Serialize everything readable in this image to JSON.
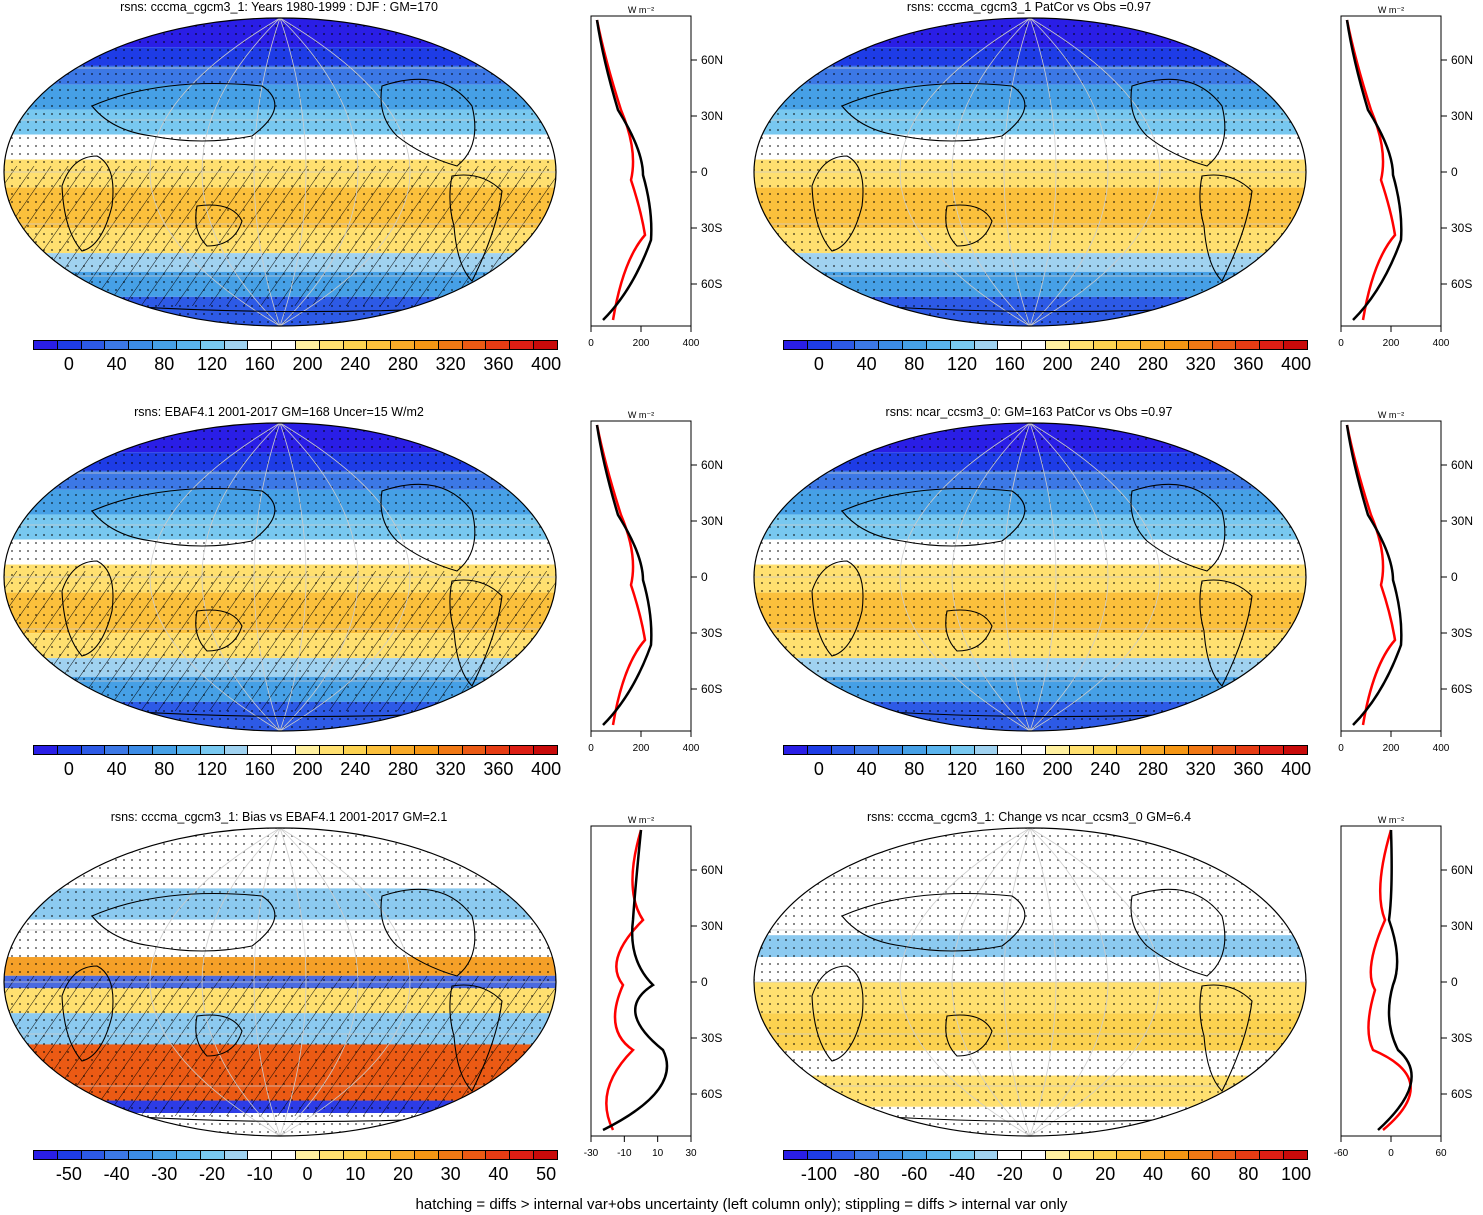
{
  "panels": [
    {
      "id": "p1",
      "title": "rsns: cccma_cgcm3_1: Years 1980-1999 : DJF : GM=170",
      "colorbar_labels": [
        "0",
        "40",
        "80",
        "120",
        "160",
        "200",
        "240",
        "280",
        "320",
        "360",
        "400"
      ],
      "zonal_unit": "W m⁻²",
      "zonal_lat_labels": [
        "60N",
        "30N",
        "0",
        "30S",
        "60S"
      ],
      "zonal_x_labels": [
        "0",
        "200",
        "400"
      ],
      "style": "abs"
    },
    {
      "id": "p2",
      "title": "rsns: cccma_cgcm3_1 PatCor vs Obs =0.97",
      "colorbar_labels": [
        "0",
        "40",
        "80",
        "120",
        "160",
        "200",
        "240",
        "280",
        "320",
        "360",
        "400"
      ],
      "zonal_unit": "W m⁻²",
      "zonal_lat_labels": [
        "60N",
        "30N",
        "0",
        "30S",
        "60S"
      ],
      "zonal_x_labels": [
        "0",
        "200",
        "400"
      ],
      "style": "abs"
    },
    {
      "id": "p3",
      "title": "rsns: EBAF4.1 2001-2017 GM=168 Uncer=15 W/m2",
      "colorbar_labels": [
        "0",
        "40",
        "80",
        "120",
        "160",
        "200",
        "240",
        "280",
        "320",
        "360",
        "400"
      ],
      "zonal_unit": "W m⁻²",
      "zonal_lat_labels": [
        "60N",
        "30N",
        "0",
        "30S",
        "60S"
      ],
      "zonal_x_labels": [
        "0",
        "200",
        "400"
      ],
      "style": "abs"
    },
    {
      "id": "p4",
      "title": "rsns: ncar_ccsm3_0: GM=163 PatCor vs Obs =0.97",
      "colorbar_labels": [
        "0",
        "40",
        "80",
        "120",
        "160",
        "200",
        "240",
        "280",
        "320",
        "360",
        "400"
      ],
      "zonal_unit": "W m⁻²",
      "zonal_lat_labels": [
        "60N",
        "30N",
        "0",
        "30S",
        "60S"
      ],
      "zonal_x_labels": [
        "0",
        "200",
        "400"
      ],
      "style": "abs"
    },
    {
      "id": "p5",
      "title": "rsns: cccma_cgcm3_1: Bias vs EBAF4.1 2001-2017 GM=2.1",
      "colorbar_labels": [
        "-50",
        "-40",
        "-30",
        "-20",
        "-10",
        "0",
        "10",
        "20",
        "30",
        "40",
        "50"
      ],
      "zonal_unit": "W m⁻²",
      "zonal_lat_labels": [
        "60N",
        "30N",
        "0",
        "30S",
        "60S"
      ],
      "zonal_x_labels": [
        "-30",
        "-10",
        "10",
        "30"
      ],
      "style": "bias"
    },
    {
      "id": "p6",
      "title": "rsns: cccma_cgcm3_1: Change vs ncar_ccsm3_0 GM=6.4",
      "colorbar_labels": [
        "-100",
        "-80",
        "-60",
        "-40",
        "-20",
        "0",
        "20",
        "40",
        "60",
        "80",
        "100"
      ],
      "zonal_unit": "W m⁻²",
      "zonal_lat_labels": [
        "60N",
        "30N",
        "0",
        "30S",
        "60S"
      ],
      "zonal_x_labels": [
        "-60",
        "0",
        "60"
      ],
      "style": "change"
    }
  ],
  "colors": {
    "abs": [
      "#2a1ee6",
      "#1e3ce6",
      "#2d5ae6",
      "#3c78e6",
      "#3c8ce6",
      "#46a0e6",
      "#5ab4ee",
      "#78c8f0",
      "#a0d2f0",
      "#ffffff",
      "#ffffff",
      "#fff0a0",
      "#ffe070",
      "#fcd250",
      "#fbc03c",
      "#f8aa28",
      "#f59614",
      "#f07814",
      "#eb5a14",
      "#e63c14",
      "#dc1e14",
      "#c80a0a"
    ],
    "model_line": "#000000",
    "obs_line": "#ff0000",
    "alt_line": "#1e1ee6"
  },
  "footer": "hatching = diffs > internal var+obs uncertainty (left column only); stippling = diffs > internal var only"
}
